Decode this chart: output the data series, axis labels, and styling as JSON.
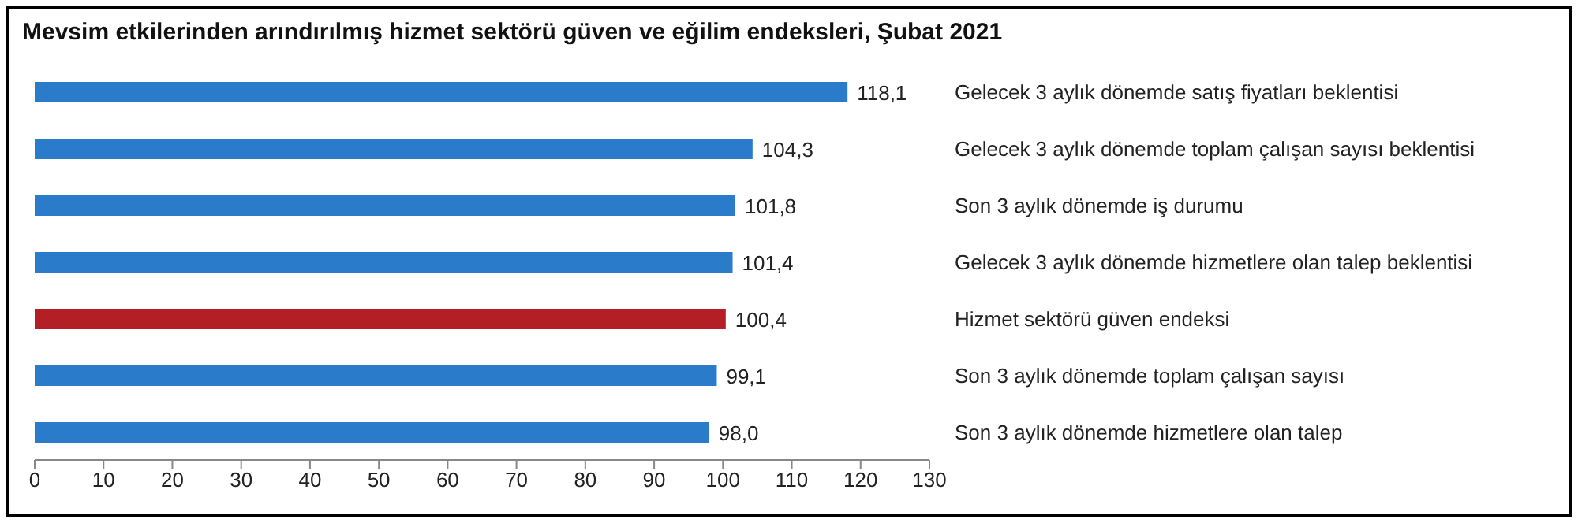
{
  "chart_data": {
    "type": "bar",
    "orientation": "horizontal",
    "title": "Mevsim etkilerinden arındırılmış hizmet sektörü güven ve eğilim endeksleri, Şubat 2021",
    "categories": [
      "Gelecek 3 aylık dönemde satış fiyatları beklentisi",
      "Gelecek 3 aylık dönemde toplam çalışan sayısı beklentisi",
      "Son 3 aylık dönemde iş durumu",
      "Gelecek 3 aylık dönemde hizmetlere olan talep beklentisi",
      "Hizmet sektörü güven endeksi",
      "Son 3 aylık dönemde toplam çalışan sayısı",
      "Son 3 aylık dönemde hizmetlere olan talep"
    ],
    "values": [
      118.1,
      104.3,
      101.8,
      101.4,
      100.4,
      99.1,
      98.0
    ],
    "value_labels": [
      "118,1",
      "104,3",
      "101,8",
      "101,4",
      "100,4",
      "99,1",
      "98,0"
    ],
    "colors": [
      "#2b7bcb",
      "#2b7bcb",
      "#2b7bcb",
      "#2b7bcb",
      "#b31f24",
      "#2b7bcb",
      "#2b7bcb"
    ],
    "xlim": [
      0,
      130
    ],
    "xticks": [
      0,
      10,
      20,
      30,
      40,
      50,
      60,
      70,
      80,
      90,
      100,
      110,
      120,
      130
    ],
    "grid": false
  }
}
